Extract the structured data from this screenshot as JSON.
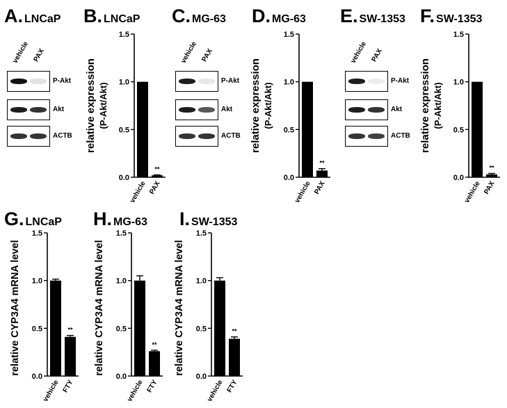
{
  "panels_top": [
    {
      "letter": "A.",
      "title": "LNCaP"
    },
    {
      "letter": "B.",
      "title": "LNCaP"
    },
    {
      "letter": "C.",
      "title": "MG-63"
    },
    {
      "letter": "D.",
      "title": "MG-63"
    },
    {
      "letter": "E.",
      "title": "SW-1353"
    },
    {
      "letter": "F.",
      "title": "SW-1353"
    }
  ],
  "panels_bottom": [
    {
      "letter": "G.",
      "title": "LNCaP"
    },
    {
      "letter": "H.",
      "title": "MG-63"
    },
    {
      "letter": "I.",
      "title": "SW-1353"
    }
  ],
  "blots": [
    {
      "lanes": [
        "vehicle",
        "PAX"
      ],
      "rows": [
        {
          "label": "P-Akt",
          "intensity": [
            1.0,
            0.12
          ]
        },
        {
          "label": "Akt",
          "intensity": [
            0.95,
            0.85
          ]
        },
        {
          "label": "ACTB",
          "intensity": [
            0.85,
            0.85
          ]
        }
      ]
    },
    {
      "lanes": [
        "vehicle",
        "PAX"
      ],
      "rows": [
        {
          "label": "P-Akt",
          "intensity": [
            0.95,
            0.1
          ]
        },
        {
          "label": "Akt",
          "intensity": [
            0.95,
            0.7
          ]
        },
        {
          "label": "ACTB",
          "intensity": [
            0.85,
            0.85
          ]
        }
      ]
    },
    {
      "lanes": [
        "vehicle",
        "PAX"
      ],
      "rows": [
        {
          "label": "P-Akt",
          "intensity": [
            0.95,
            0.08
          ]
        },
        {
          "label": "Akt",
          "intensity": [
            0.95,
            0.85
          ]
        },
        {
          "label": "ACTB",
          "intensity": [
            0.85,
            0.8
          ]
        }
      ]
    }
  ],
  "chart_data": [
    {
      "type": "bar",
      "panel": "B",
      "categories": [
        "vehicle",
        "PAX"
      ],
      "values": [
        1.0,
        0.02
      ],
      "errors": [
        0,
        0.005
      ],
      "annotations": [
        "",
        "**"
      ],
      "ylabel": "relative expression",
      "ylabel2": "(P-Akt/Akt)",
      "ylim": [
        0,
        1.5
      ],
      "yticks": [
        "0.0",
        "0.5",
        "1.0",
        "1.5"
      ]
    },
    {
      "type": "bar",
      "panel": "D",
      "categories": [
        "vehicle",
        "PAX"
      ],
      "values": [
        1.0,
        0.07
      ],
      "errors": [
        0,
        0.02
      ],
      "annotations": [
        "",
        "**"
      ],
      "ylabel": "relative expression",
      "ylabel2": "(P-Akt/Akt)",
      "ylim": [
        0,
        1.5
      ],
      "yticks": [
        "0.0",
        "0.5",
        "1.0",
        "1.5"
      ]
    },
    {
      "type": "bar",
      "panel": "F",
      "categories": [
        "vehicle",
        "PAX"
      ],
      "values": [
        1.0,
        0.03
      ],
      "errors": [
        0,
        0.01
      ],
      "annotations": [
        "",
        "**"
      ],
      "ylabel": "relative expression",
      "ylabel2": "(P-Akt/Akt)",
      "ylim": [
        0,
        1.5
      ],
      "yticks": [
        "0.0",
        "0.5",
        "1.0",
        "1.5"
      ]
    },
    {
      "type": "bar",
      "panel": "G",
      "categories": [
        "vehicle",
        "FTY"
      ],
      "values": [
        1.0,
        0.41
      ],
      "errors": [
        0.015,
        0.015
      ],
      "annotations": [
        "",
        "**"
      ],
      "ylabel": "relative CYP3A4 mRNA level",
      "ylim": [
        0,
        1.5
      ],
      "yticks": [
        "0.0",
        "0.5",
        "1.0",
        "1.5"
      ]
    },
    {
      "type": "bar",
      "panel": "H",
      "categories": [
        "vehicle",
        "FTY"
      ],
      "values": [
        1.0,
        0.26
      ],
      "errors": [
        0.05,
        0.01
      ],
      "annotations": [
        "",
        "**"
      ],
      "ylabel": "relative CYP3A4 mRNA level",
      "ylim": [
        0,
        1.5
      ],
      "yticks": [
        "0.0",
        "0.5",
        "1.0",
        "1.5"
      ]
    },
    {
      "type": "bar",
      "panel": "I",
      "categories": [
        "vehicle",
        "FTY"
      ],
      "values": [
        1.0,
        0.39
      ],
      "errors": [
        0.03,
        0.02
      ],
      "annotations": [
        "",
        "**"
      ],
      "ylabel": "relative CYP3A4 mRNA level",
      "ylim": [
        0,
        1.5
      ],
      "yticks": [
        "0.0",
        "0.5",
        "1.0",
        "1.5"
      ]
    }
  ],
  "colors": {
    "bar": "#000000",
    "axis": "#000000",
    "band": "#111111"
  }
}
